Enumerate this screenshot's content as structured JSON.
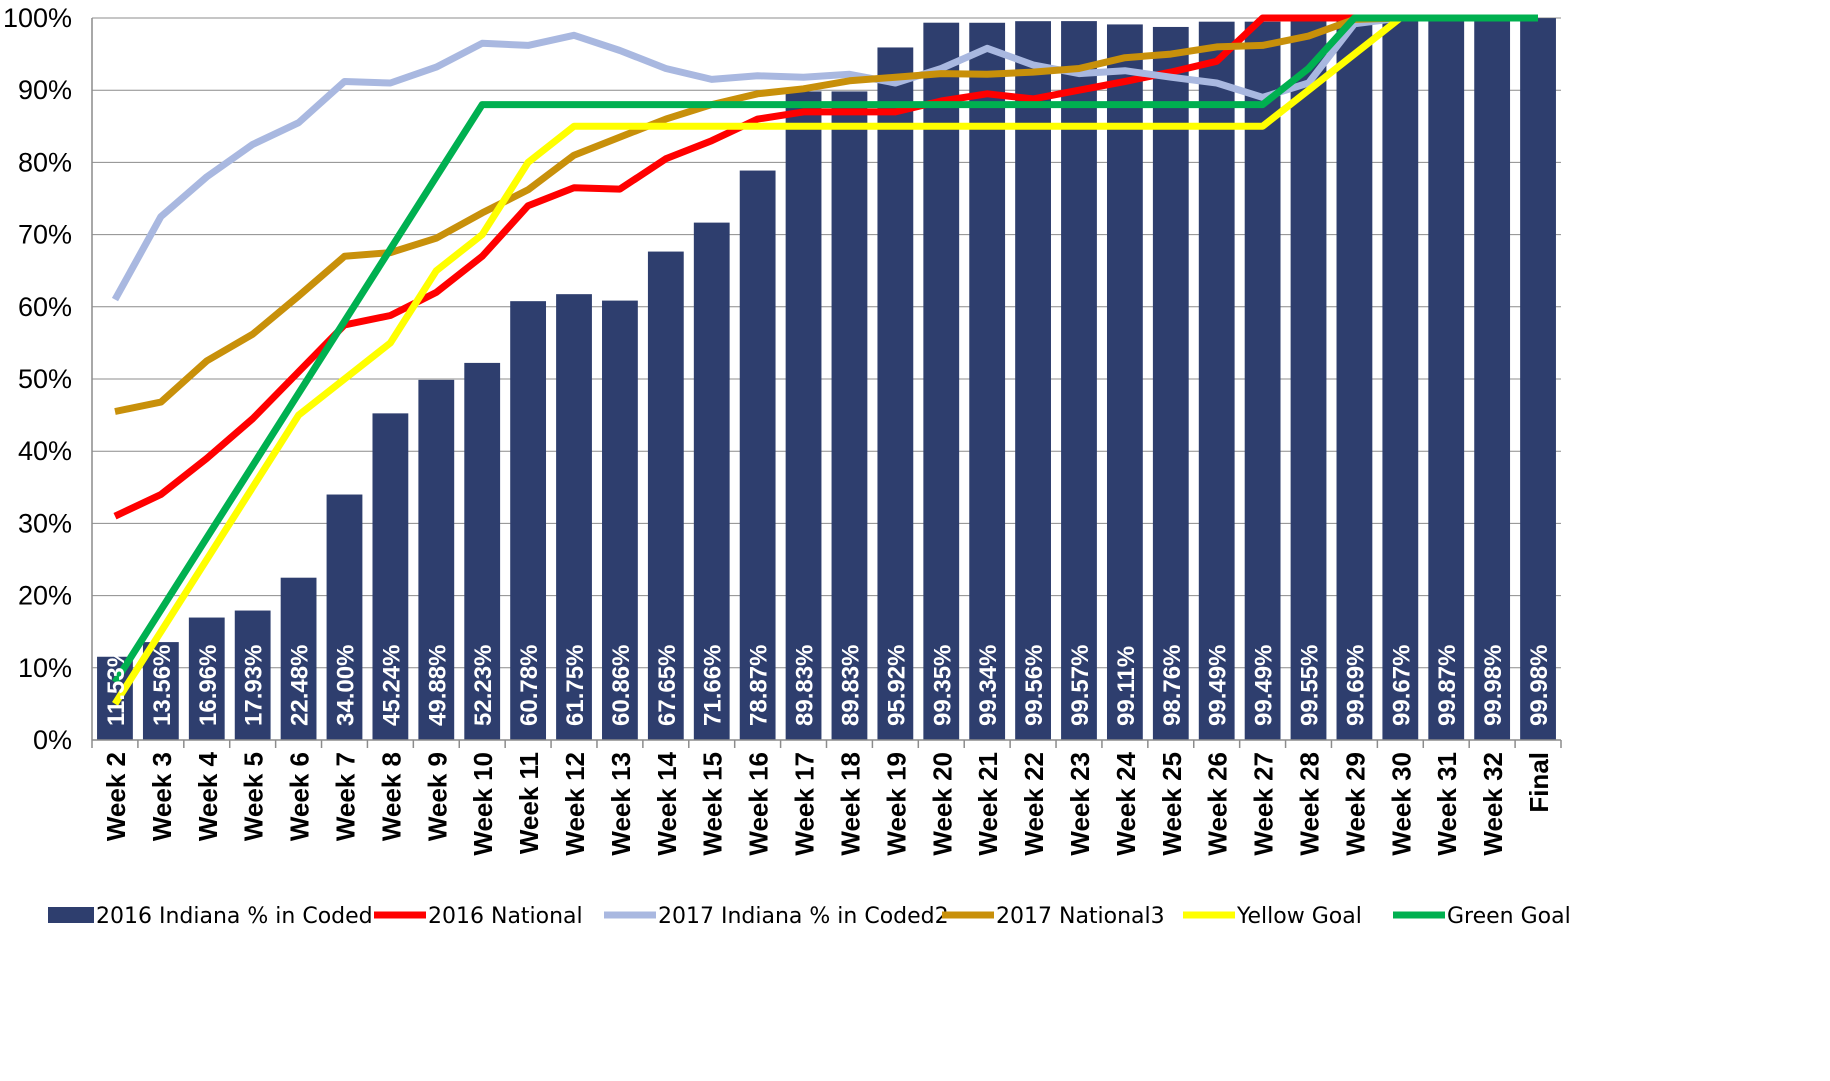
{
  "chart_data": {
    "type": "bar",
    "categories": [
      "Week 2",
      "Week 3",
      "Week 4",
      "Week 5",
      "Week 6",
      "Week 7",
      "Week 8",
      "Week 9",
      "Week 10",
      "Week 11",
      "Week 12",
      "Week 13",
      "Week 14",
      "Week 15",
      "Week 16",
      "Week 17",
      "Week 18",
      "Week 19",
      "Week 20",
      "Week 21",
      "Week 22",
      "Week 23",
      "Week 24",
      "Week 25",
      "Week 26",
      "Week 27",
      "Week 28",
      "Week 29",
      "Week 30",
      "Week 31",
      "Week 32",
      "Final"
    ],
    "ylim": [
      0,
      100
    ],
    "yticks": [
      "0%",
      "10%",
      "20%",
      "30%",
      "40%",
      "50%",
      "60%",
      "70%",
      "80%",
      "90%",
      "100%"
    ],
    "grid": true,
    "legend_position": "bottom",
    "series": [
      {
        "name": "2016 Indiana % in Coded",
        "kind": "bar",
        "color": "#2E3E6E",
        "values": [
          11.53,
          13.56,
          16.96,
          17.93,
          22.48,
          34.0,
          45.24,
          49.88,
          52.23,
          60.78,
          61.75,
          60.86,
          67.65,
          71.66,
          78.87,
          89.83,
          89.83,
          95.92,
          99.35,
          99.34,
          99.56,
          99.57,
          99.11,
          98.76,
          99.49,
          99.49,
          99.55,
          99.69,
          99.67,
          99.87,
          99.98,
          99.98
        ],
        "labels": [
          "11.53%",
          "13.56%",
          "16.96%",
          "17.93%",
          "22.48%",
          "34.00%",
          "45.24%",
          "49.88%",
          "52.23%",
          "60.78%",
          "61.75%",
          "60.86%",
          "67.65%",
          "71.66%",
          "78.87%",
          "89.83%",
          "89.83%",
          "95.92%",
          "99.35%",
          "99.34%",
          "99.56%",
          "99.57%",
          "99.11%",
          "98.76%",
          "99.49%",
          "99.49%",
          "99.55%",
          "99.69%",
          "99.67%",
          "99.87%",
          "99.98%",
          "99.98%"
        ]
      },
      {
        "name": "2016 National",
        "kind": "line",
        "color": "#FF0000",
        "values": [
          31,
          34,
          39,
          44.5,
          51,
          57.5,
          58.8,
          62,
          67,
          74,
          76.5,
          76.3,
          80.5,
          83,
          86,
          87,
          87,
          87,
          88.5,
          89.5,
          88.8,
          90,
          91.2,
          92.5,
          94,
          100,
          100,
          100,
          100,
          100,
          100,
          100
        ]
      },
      {
        "name": "2017 Indiana % in Coded2",
        "kind": "line",
        "color": "#A9B8E0",
        "values": [
          61,
          72.5,
          78,
          82.5,
          85.5,
          91.2,
          91,
          93.2,
          96.5,
          96.2,
          97.6,
          95.5,
          93,
          91.5,
          92,
          91.8,
          92.2,
          91,
          93,
          95.8,
          93.5,
          92.3,
          92.7,
          91.8,
          91,
          89,
          91,
          99.2,
          100,
          100,
          100,
          100
        ]
      },
      {
        "name": "2017 National3",
        "kind": "line",
        "color": "#C8900A",
        "values": [
          45.5,
          46.8,
          52.5,
          56.2,
          61.5,
          67,
          67.5,
          69.5,
          73,
          76.2,
          81,
          83.5,
          86,
          88,
          89.5,
          90.2,
          91.3,
          91.8,
          92.3,
          92.2,
          92.5,
          93,
          94.5,
          95,
          96,
          96.2,
          97.5,
          99.8,
          100,
          100,
          100,
          100
        ]
      },
      {
        "name": "Yellow Goal",
        "kind": "line",
        "color": "#FFFF00",
        "values": [
          5,
          15,
          25,
          35,
          45,
          50,
          55,
          65,
          70,
          80,
          85,
          85,
          85,
          85,
          85,
          85,
          85,
          85,
          85,
          85,
          85,
          85,
          85,
          85,
          85,
          85,
          90,
          95,
          100,
          100,
          100,
          100
        ]
      },
      {
        "name": "Green Goal",
        "kind": "line",
        "color": "#00B050",
        "values": [
          8,
          18,
          28,
          38,
          48,
          58,
          68,
          78,
          88,
          88,
          88,
          88,
          88,
          88,
          88,
          88,
          88,
          88,
          88,
          88,
          88,
          88,
          88,
          88,
          88,
          88,
          93,
          100,
          100,
          100,
          100,
          100
        ]
      }
    ]
  }
}
